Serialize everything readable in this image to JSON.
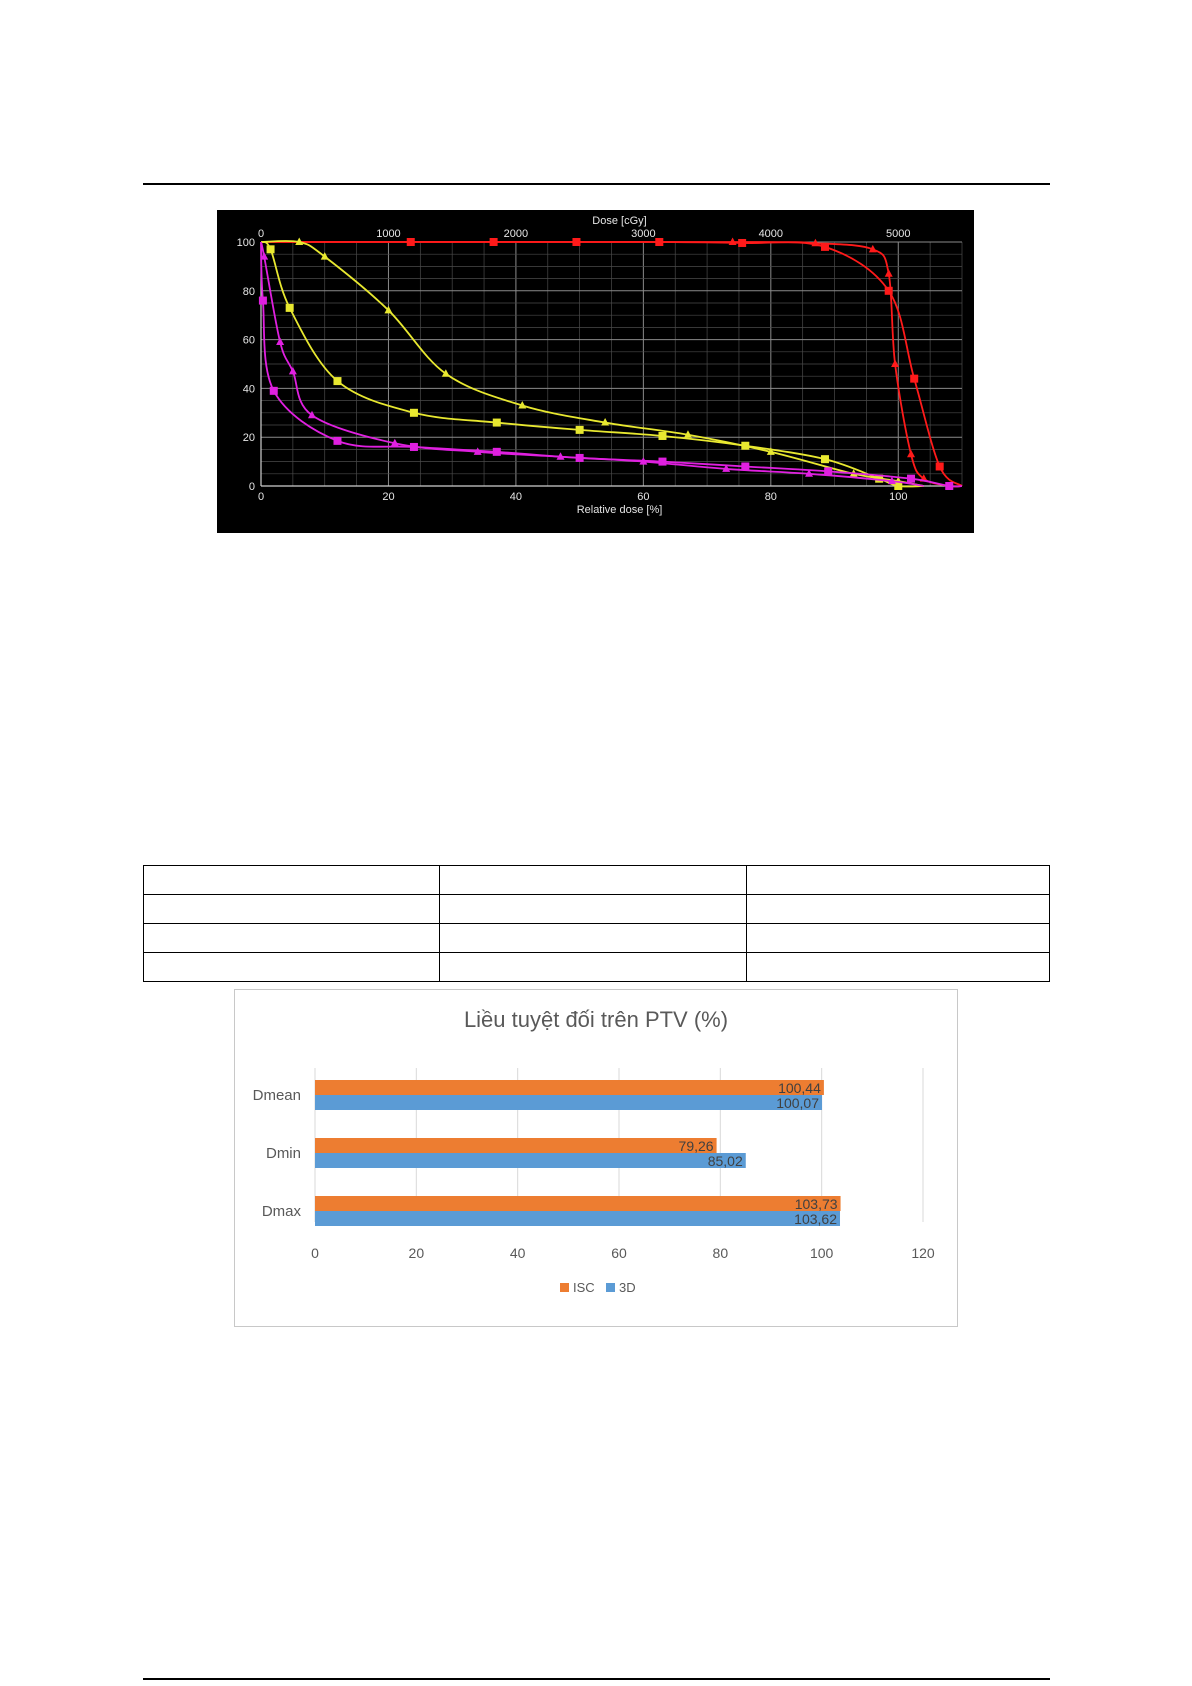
{
  "chart_data": [
    {
      "type": "line",
      "title": "",
      "xlabel": "Relative dose [%]",
      "x2label": "Dose [cGy]",
      "ylabel": "",
      "xlim": [
        0,
        110
      ],
      "ylim": [
        0,
        100
      ],
      "x2lim": [
        0,
        5500
      ],
      "x_ticks": [
        0,
        20,
        40,
        60,
        80,
        100
      ],
      "x2_ticks": [
        0,
        1000,
        2000,
        3000,
        4000,
        5000
      ],
      "y_ticks": [
        0,
        20,
        40,
        60,
        80,
        100
      ],
      "grid": true,
      "series": [
        {
          "color": "#ff1a1a",
          "marker": "square",
          "x": [
            0,
            23.5,
            36.5,
            49.5,
            62.5,
            75.5,
            88.5,
            98.5,
            102.5,
            106.5,
            110
          ],
          "y": [
            100,
            100,
            100,
            100,
            100,
            99.6,
            98,
            80,
            44,
            8,
            0
          ]
        },
        {
          "color": "#ff1a1a",
          "marker": "triangle",
          "x": [
            0,
            74,
            87,
            96,
            98.5,
            99.5,
            102,
            104,
            108,
            110
          ],
          "y": [
            100,
            100,
            99.5,
            97,
            87,
            50,
            13,
            3,
            0,
            0
          ]
        },
        {
          "color": "#e8e830",
          "marker": "square",
          "x": [
            0,
            1.5,
            4.5,
            12,
            24,
            37,
            50,
            63,
            76,
            88.5,
            97,
            100,
            104
          ],
          "y": [
            100,
            97,
            73,
            43,
            30,
            26,
            23,
            20.5,
            16.5,
            11,
            3,
            0,
            0
          ]
        },
        {
          "color": "#e8e830",
          "marker": "triangle",
          "x": [
            0,
            6,
            10,
            20,
            29,
            41,
            54,
            67,
            80,
            93,
            100,
            104
          ],
          "y": [
            100,
            100,
            94,
            72,
            46,
            33,
            26,
            21,
            14,
            5,
            2,
            0
          ]
        },
        {
          "color": "#e020e0",
          "marker": "square",
          "x": [
            0,
            0.3,
            2,
            12,
            24,
            37,
            50,
            63,
            76,
            89,
            102,
            108,
            110
          ],
          "y": [
            100,
            76,
            39,
            18.5,
            16,
            14,
            11.5,
            10,
            8,
            6,
            3,
            0,
            0
          ]
        },
        {
          "color": "#e020e0",
          "marker": "triangle",
          "x": [
            0,
            0.5,
            3,
            5,
            8,
            21,
            34,
            47,
            60,
            73,
            86,
            99,
            104
          ],
          "y": [
            100,
            94,
            59,
            47,
            29,
            17.5,
            14,
            12,
            10,
            7,
            5,
            2,
            0
          ]
        }
      ]
    },
    {
      "type": "bar",
      "orientation": "horizontal",
      "title": "Liều tuyệt đối trên PTV (%)",
      "categories": [
        "Dmean",
        "Dmin",
        "Dmax"
      ],
      "series": [
        {
          "name": "ISC",
          "color": "#ed7d31",
          "values": [
            100.44,
            79.26,
            103.73
          ],
          "labels": [
            "100,44",
            "79,26",
            "103,73"
          ]
        },
        {
          "name": "3D",
          "color": "#5b9bd5",
          "values": [
            100.07,
            85.02,
            103.62
          ],
          "labels": [
            "100,07",
            "85,02",
            "103,62"
          ]
        }
      ],
      "xlim": [
        0,
        120
      ],
      "x_ticks": [
        0,
        20,
        40,
        60,
        80,
        100,
        120
      ],
      "legend_position": "bottom",
      "grid": true
    }
  ]
}
